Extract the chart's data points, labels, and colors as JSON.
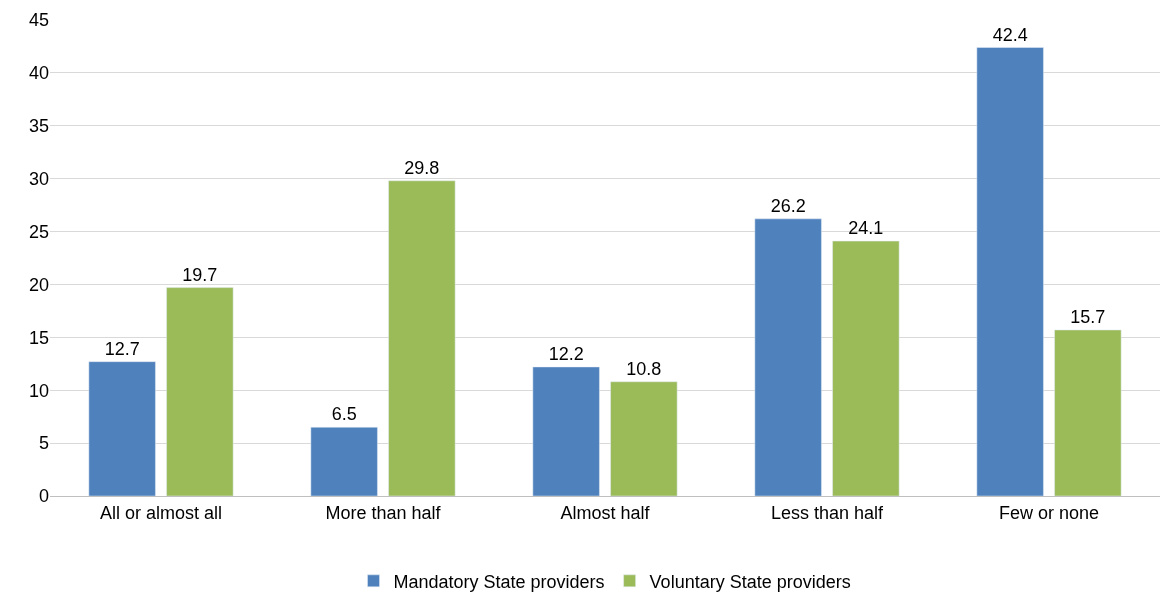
{
  "chart_data": {
    "type": "bar",
    "categories": [
      "All or almost all",
      "More than half",
      "Almost half",
      "Less than half",
      "Few or none"
    ],
    "series": [
      {
        "name": "Mandatory State providers",
        "color": "#4f81bd",
        "values": [
          12.7,
          6.5,
          12.2,
          26.2,
          42.4
        ]
      },
      {
        "name": "Voluntary State providers",
        "color": "#9bbb59",
        "values": [
          19.7,
          29.8,
          10.8,
          24.1,
          15.7
        ]
      }
    ],
    "ylim": [
      0,
      45
    ],
    "yticks": [
      0,
      5,
      10,
      15,
      20,
      25,
      30,
      35,
      40,
      45
    ],
    "grid": "y",
    "legend": "bottom",
    "data_labels": true
  }
}
